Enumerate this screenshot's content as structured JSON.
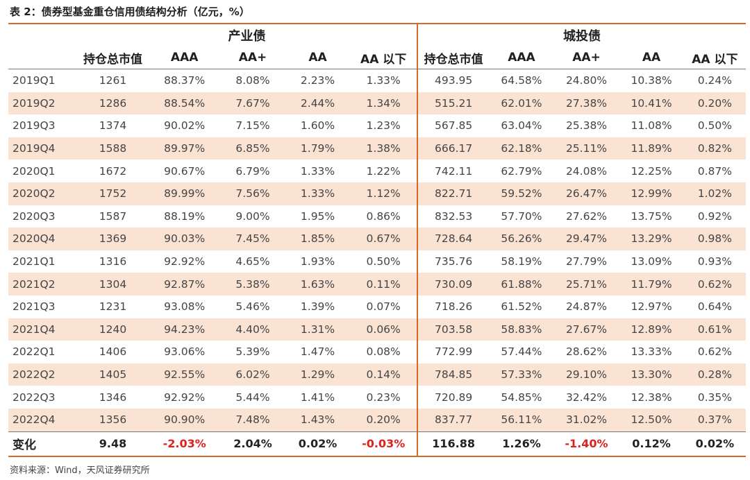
{
  "caption": "表 2：债券型基金重仓信用债结构分析（亿元，%）",
  "groups": {
    "industrial": "产业债",
    "chengtou": "城投债"
  },
  "columns": [
    "持仓总市值",
    "AAA",
    "AA+",
    "AA",
    "AA 以下"
  ],
  "colors": {
    "accent": "#d26a2a",
    "row_shade": "#fbe3d4",
    "negative": "#e0211b"
  },
  "rows": [
    {
      "quarter": "2019Q1",
      "industrial": [
        "1261",
        "88.37%",
        "8.08%",
        "2.23%",
        "1.33%"
      ],
      "chengtou": [
        "493.95",
        "64.58%",
        "24.80%",
        "10.38%",
        "0.24%"
      ]
    },
    {
      "quarter": "2019Q2",
      "industrial": [
        "1286",
        "88.54%",
        "7.67%",
        "2.44%",
        "1.34%"
      ],
      "chengtou": [
        "515.21",
        "62.01%",
        "27.38%",
        "10.41%",
        "0.20%"
      ]
    },
    {
      "quarter": "2019Q3",
      "industrial": [
        "1374",
        "90.02%",
        "7.15%",
        "1.60%",
        "1.23%"
      ],
      "chengtou": [
        "567.85",
        "63.04%",
        "25.38%",
        "11.08%",
        "0.50%"
      ]
    },
    {
      "quarter": "2019Q4",
      "industrial": [
        "1588",
        "89.97%",
        "6.85%",
        "1.79%",
        "1.38%"
      ],
      "chengtou": [
        "666.17",
        "62.18%",
        "25.11%",
        "11.89%",
        "0.82%"
      ]
    },
    {
      "quarter": "2020Q1",
      "industrial": [
        "1672",
        "90.67%",
        "6.79%",
        "1.33%",
        "1.22%"
      ],
      "chengtou": [
        "742.11",
        "62.79%",
        "24.08%",
        "12.25%",
        "0.87%"
      ]
    },
    {
      "quarter": "2020Q2",
      "industrial": [
        "1752",
        "89.99%",
        "7.56%",
        "1.33%",
        "1.12%"
      ],
      "chengtou": [
        "822.71",
        "59.52%",
        "26.47%",
        "12.99%",
        "1.02%"
      ]
    },
    {
      "quarter": "2020Q3",
      "industrial": [
        "1587",
        "88.19%",
        "9.00%",
        "1.95%",
        "0.86%"
      ],
      "chengtou": [
        "832.53",
        "57.70%",
        "27.62%",
        "13.75%",
        "0.92%"
      ]
    },
    {
      "quarter": "2020Q4",
      "industrial": [
        "1369",
        "90.03%",
        "7.45%",
        "1.85%",
        "0.67%"
      ],
      "chengtou": [
        "728.64",
        "56.26%",
        "29.47%",
        "13.29%",
        "0.98%"
      ]
    },
    {
      "quarter": "2021Q1",
      "industrial": [
        "1316",
        "92.92%",
        "4.65%",
        "1.93%",
        "0.50%"
      ],
      "chengtou": [
        "735.76",
        "58.19%",
        "27.79%",
        "13.09%",
        "0.93%"
      ]
    },
    {
      "quarter": "2021Q2",
      "industrial": [
        "1304",
        "92.87%",
        "5.38%",
        "1.63%",
        "0.11%"
      ],
      "chengtou": [
        "730.09",
        "61.88%",
        "25.71%",
        "11.79%",
        "0.62%"
      ]
    },
    {
      "quarter": "2021Q3",
      "industrial": [
        "1231",
        "93.08%",
        "5.46%",
        "1.39%",
        "0.07%"
      ],
      "chengtou": [
        "718.26",
        "61.52%",
        "24.87%",
        "12.97%",
        "0.64%"
      ]
    },
    {
      "quarter": "2021Q4",
      "industrial": [
        "1240",
        "94.23%",
        "4.40%",
        "1.31%",
        "0.06%"
      ],
      "chengtou": [
        "703.58",
        "58.83%",
        "27.67%",
        "12.89%",
        "0.61%"
      ]
    },
    {
      "quarter": "2022Q1",
      "industrial": [
        "1406",
        "93.06%",
        "5.39%",
        "1.47%",
        "0.08%"
      ],
      "chengtou": [
        "772.99",
        "57.44%",
        "28.62%",
        "13.33%",
        "0.62%"
      ]
    },
    {
      "quarter": "2022Q2",
      "industrial": [
        "1405",
        "92.55%",
        "6.02%",
        "1.29%",
        "0.14%"
      ],
      "chengtou": [
        "784.85",
        "57.33%",
        "29.10%",
        "13.30%",
        "0.28%"
      ]
    },
    {
      "quarter": "2022Q3",
      "industrial": [
        "1346",
        "92.92%",
        "5.44%",
        "1.41%",
        "0.23%"
      ],
      "chengtou": [
        "720.89",
        "54.85%",
        "32.42%",
        "12.38%",
        "0.35%"
      ]
    },
    {
      "quarter": "2022Q4",
      "industrial": [
        "1356",
        "90.90%",
        "7.48%",
        "1.43%",
        "0.20%"
      ],
      "chengtou": [
        "837.77",
        "56.11%",
        "31.02%",
        "12.50%",
        "0.37%"
      ]
    }
  ],
  "change": {
    "label": "变化",
    "industrial": [
      "9.48",
      "-2.03%",
      "2.04%",
      "0.02%",
      "-0.03%"
    ],
    "chengtou": [
      "116.88",
      "1.26%",
      "-1.40%",
      "0.12%",
      "0.02%"
    ]
  },
  "source": "资料来源：Wind，天风证券研究所"
}
